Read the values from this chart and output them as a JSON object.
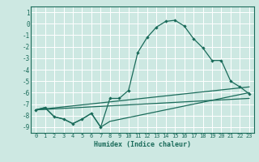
{
  "xlabel": "Humidex (Indice chaleur)",
  "xlim": [
    -0.5,
    23.5
  ],
  "ylim": [
    -9.5,
    1.5
  ],
  "xticks": [
    0,
    1,
    2,
    3,
    4,
    5,
    6,
    7,
    8,
    9,
    10,
    11,
    12,
    13,
    14,
    15,
    16,
    17,
    18,
    19,
    20,
    21,
    22,
    23
  ],
  "yticks": [
    1,
    0,
    -1,
    -2,
    -3,
    -4,
    -5,
    -6,
    -7,
    -8,
    -9
  ],
  "bg_color": "#cde8e2",
  "grid_color": "#ffffff",
  "line_color": "#1a6b5a",
  "lines": [
    {
      "x": [
        0,
        1,
        2,
        3,
        4,
        5,
        6,
        7,
        8,
        9,
        10,
        11,
        12,
        13,
        14,
        15,
        16,
        17,
        18,
        19,
        20,
        21,
        22,
        23
      ],
      "y": [
        -7.5,
        -7.3,
        -8.1,
        -8.3,
        -8.7,
        -8.3,
        -7.8,
        -9.0,
        -6.5,
        -6.5,
        -5.8,
        -2.5,
        -1.2,
        -0.3,
        0.2,
        0.3,
        -0.2,
        -1.3,
        -2.1,
        -3.2,
        -3.2,
        -5.0,
        -5.5,
        -6.1
      ],
      "marker": true
    },
    {
      "x": [
        0,
        1,
        2,
        3,
        4,
        5,
        6,
        7,
        8,
        23
      ],
      "y": [
        -7.5,
        -7.3,
        -8.1,
        -8.3,
        -8.7,
        -8.3,
        -7.8,
        -9.0,
        -8.5,
        -6.0
      ],
      "marker": false
    },
    {
      "x": [
        0,
        23
      ],
      "y": [
        -7.5,
        -5.5
      ],
      "marker": false
    },
    {
      "x": [
        0,
        23
      ],
      "y": [
        -7.5,
        -6.5
      ],
      "marker": false
    }
  ]
}
